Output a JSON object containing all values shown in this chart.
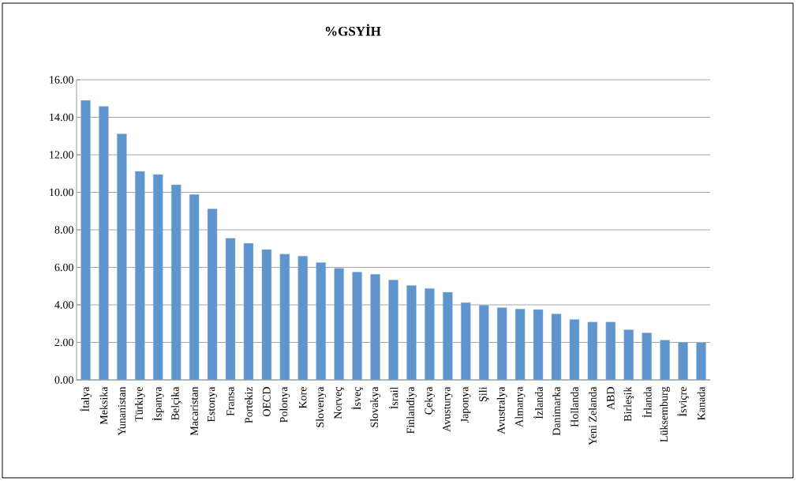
{
  "chart_data": {
    "type": "bar",
    "title": "%GSYİH",
    "categories": [
      "İtalya",
      "Meksika",
      "Yunanistan",
      "Türkiye",
      "İspanya",
      "Belçika",
      "Macaristan",
      "Estonya",
      "Fransa",
      "Portekiz",
      "OECD",
      "Polonya",
      "Kore",
      "Slovenya",
      "Norveç",
      "İsveç",
      "Slovakya",
      "İsrail",
      "Finlandiya",
      "Çekya",
      "Avusturya",
      "Japonya",
      "Şili",
      "Avustralya",
      "Almanya",
      "İzlanda",
      "Danimarka",
      "Hollanda",
      "Yeni Zelanda",
      "ABD",
      "Birleşik",
      "İrlanda",
      "Lüksemburg",
      "İsviçre",
      "Kanada"
    ],
    "values": [
      14.9,
      14.58,
      13.12,
      11.12,
      10.95,
      10.4,
      9.88,
      9.12,
      7.55,
      7.28,
      6.95,
      6.7,
      6.6,
      6.25,
      5.95,
      5.75,
      5.63,
      5.33,
      5.03,
      4.87,
      4.67,
      4.12,
      3.98,
      3.85,
      3.78,
      3.75,
      3.52,
      3.22,
      3.08,
      3.08,
      2.67,
      2.5,
      2.12,
      2.0,
      1.98
    ],
    "color": "#5f95cc",
    "ylim": [
      0,
      16
    ],
    "yticks": [
      {
        "value": 0,
        "label": "0.00"
      },
      {
        "value": 2,
        "label": "2.00"
      },
      {
        "value": 4,
        "label": "4.00"
      },
      {
        "value": 6,
        "label": "6.00"
      },
      {
        "value": 8,
        "label": "8.00"
      },
      {
        "value": 10,
        "label": "10.00"
      },
      {
        "value": 12,
        "label": "12.00"
      },
      {
        "value": 14,
        "label": "14.00"
      },
      {
        "value": 16,
        "label": "16.00"
      }
    ],
    "grid": "y"
  }
}
